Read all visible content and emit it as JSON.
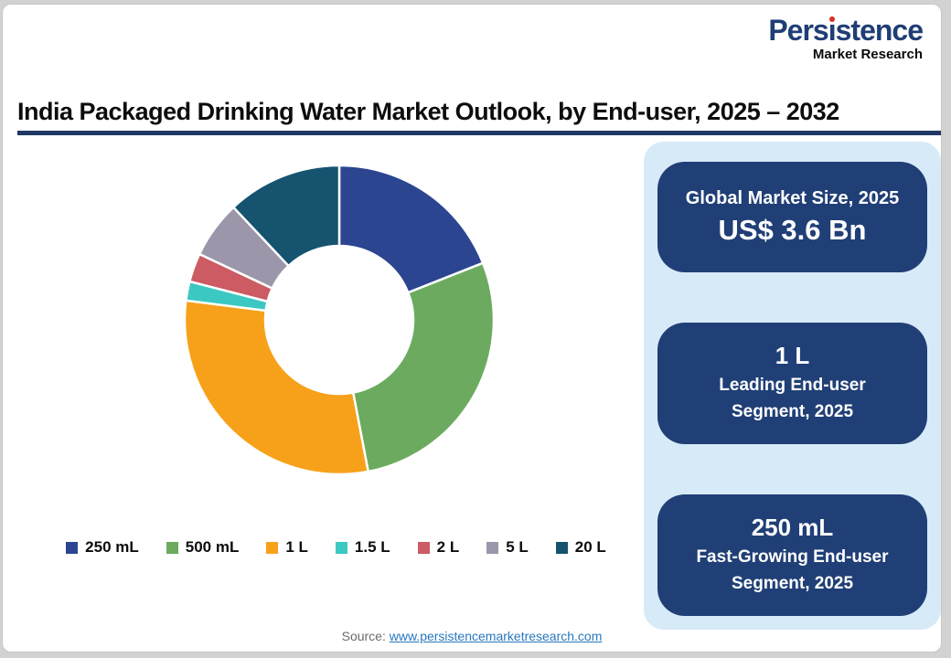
{
  "logo": {
    "brand": "Persistence",
    "tagline": "Market Research",
    "brand_color": "#1F3E75",
    "dot_color": "#D92D27"
  },
  "title": "India Packaged Drinking Water Market Outlook, by End-user, 2025 – 2032",
  "chart_data": {
    "type": "pie",
    "subtype": "donut",
    "title": "India Packaged Drinking Water Market Outlook, by End-user, 2025 – 2032",
    "unit": "%",
    "start_angle_deg": -90,
    "direction": "clockwise",
    "inner_radius_ratio": 0.48,
    "legend_position": "bottom",
    "categories": [
      "250 mL",
      "500 mL",
      "1 L",
      "1.5 L",
      "2 L",
      "5 L",
      "20 L"
    ],
    "values": [
      19,
      28,
      30,
      2,
      3,
      6,
      12
    ],
    "colors": [
      "#2B4590",
      "#6CAB5F",
      "#F7A11A",
      "#3BC8C3",
      "#CC5B64",
      "#9C96AA",
      "#15536F"
    ]
  },
  "sidebar": {
    "background_color": "#D7EAF8",
    "card_color": "#203F76",
    "cards": [
      {
        "title": "Global Market Size, 2025",
        "value": "US$ 3.6 Bn"
      },
      {
        "value": "1 L",
        "sub1": "Leading End-user",
        "sub2": "Segment, 2025"
      },
      {
        "value": "250 mL",
        "sub1": "Fast-Growing End-user",
        "sub2": "Segment, 2025"
      }
    ]
  },
  "source": {
    "prefix": "Source: ",
    "link": "www.persistencemarketresearch.com"
  }
}
